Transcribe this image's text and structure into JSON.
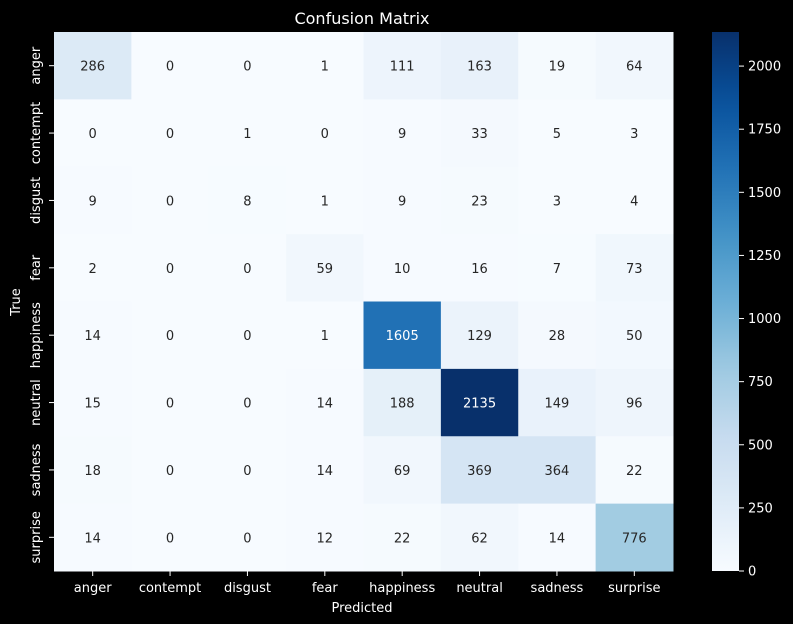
{
  "chart_data": {
    "type": "heatmap",
    "title": "Confusion Matrix",
    "xlabel": "Predicted",
    "ylabel": "True",
    "x_categories": [
      "anger",
      "contempt",
      "disgust",
      "fear",
      "happiness",
      "neutral",
      "sadness",
      "surprise"
    ],
    "y_categories": [
      "anger",
      "contempt",
      "disgust",
      "fear",
      "happiness",
      "neutral",
      "sadness",
      "surprise"
    ],
    "values": [
      [
        286,
        0,
        0,
        1,
        111,
        163,
        19,
        64
      ],
      [
        0,
        0,
        1,
        0,
        9,
        33,
        5,
        3
      ],
      [
        9,
        0,
        8,
        1,
        9,
        23,
        3,
        4
      ],
      [
        2,
        0,
        0,
        59,
        10,
        16,
        7,
        73
      ],
      [
        14,
        0,
        0,
        1,
        1605,
        129,
        28,
        50
      ],
      [
        15,
        0,
        0,
        14,
        188,
        2135,
        149,
        96
      ],
      [
        18,
        0,
        0,
        14,
        69,
        369,
        364,
        22
      ],
      [
        14,
        0,
        0,
        12,
        22,
        62,
        14,
        776
      ]
    ],
    "colormap": "Blues",
    "vmin": 0,
    "vmax": 2135,
    "colorbar_ticks": [
      "0",
      "250",
      "500",
      "750",
      "1000",
      "1250",
      "1500",
      "1750",
      "2000"
    ],
    "background": "#000000",
    "text_color": "#ffffff"
  }
}
